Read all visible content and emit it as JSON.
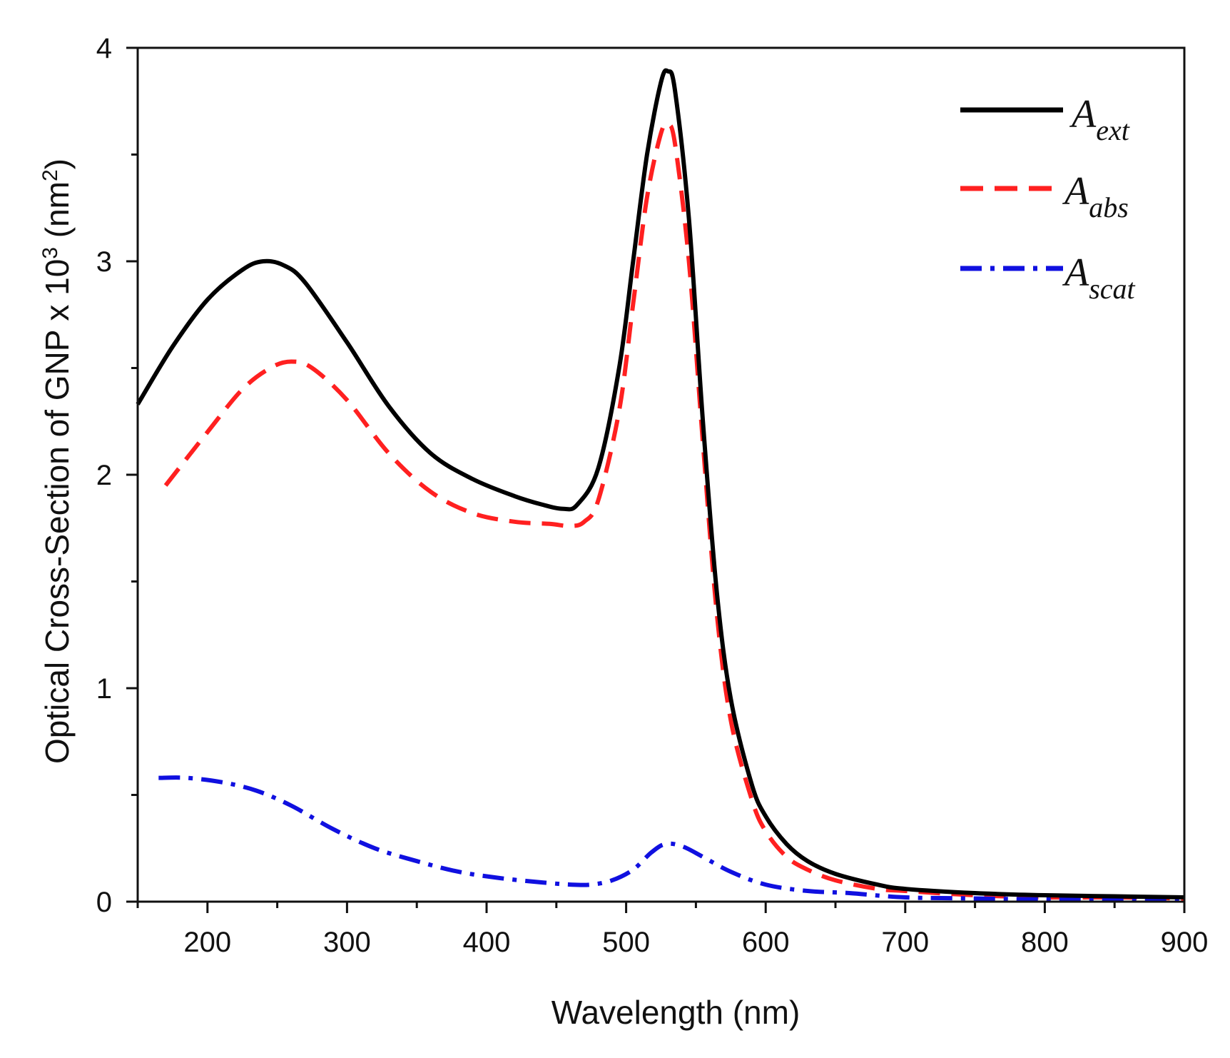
{
  "chart_data": {
    "type": "line",
    "title": "",
    "xlabel": "Wavelength (nm)",
    "ylabel_main": "Optical Cross-Section of GNP  x 10",
    "ylabel_exp": "3",
    "ylabel_unit_open": " (nm",
    "ylabel_unit_exp": "2",
    "ylabel_unit_close": ")",
    "xlim": [
      150,
      900
    ],
    "ylim": [
      0,
      4
    ],
    "x_ticks": [
      200,
      300,
      400,
      500,
      600,
      700,
      800,
      900
    ],
    "x_tick_labels": [
      "200",
      "300",
      "400",
      "500",
      "600",
      "700",
      "800",
      "900"
    ],
    "x_minor_ticks": [
      150,
      250,
      350,
      450,
      550,
      650,
      750,
      850
    ],
    "y_ticks": [
      0,
      1,
      2,
      3,
      4
    ],
    "y_tick_labels": [
      "0",
      "1",
      "2",
      "3",
      "4"
    ],
    "y_minor_ticks": [
      0.5,
      1.5,
      2.5,
      3.5
    ],
    "grid": false,
    "legend_position": "top-right",
    "series": [
      {
        "name": "A_ext",
        "label_main": "A",
        "label_sub": "ext",
        "color": "#000000",
        "dash": "solid",
        "x": [
          150,
          175,
          200,
          225,
          240,
          255,
          270,
          300,
          330,
          360,
          390,
          420,
          440,
          455,
          465,
          480,
          495,
          505,
          515,
          525,
          530,
          535,
          545,
          555,
          565,
          575,
          590,
          600,
          615,
          630,
          650,
          680,
          700,
          750,
          800,
          850,
          900
        ],
        "y": [
          2.33,
          2.6,
          2.82,
          2.96,
          3.0,
          2.98,
          2.9,
          2.62,
          2.32,
          2.1,
          1.98,
          1.9,
          1.86,
          1.84,
          1.86,
          2.03,
          2.5,
          3.0,
          3.5,
          3.84,
          3.89,
          3.8,
          3.2,
          2.25,
          1.45,
          0.95,
          0.55,
          0.4,
          0.27,
          0.19,
          0.13,
          0.08,
          0.06,
          0.04,
          0.03,
          0.025,
          0.02
        ]
      },
      {
        "name": "A_abs",
        "label_main": "A",
        "label_sub": "abs",
        "color": "#ff2020",
        "dash": "dashed",
        "x": [
          170,
          200,
          225,
          245,
          260,
          275,
          300,
          330,
          360,
          390,
          420,
          445,
          460,
          470,
          480,
          495,
          505,
          515,
          525,
          530,
          535,
          545,
          555,
          565,
          575,
          590,
          600,
          615,
          630,
          650,
          680,
          700,
          750,
          800,
          850,
          900
        ],
        "y": [
          1.95,
          2.2,
          2.4,
          2.5,
          2.53,
          2.5,
          2.35,
          2.1,
          1.92,
          1.82,
          1.78,
          1.77,
          1.76,
          1.78,
          1.88,
          2.3,
          2.8,
          3.3,
          3.6,
          3.64,
          3.55,
          3.0,
          2.15,
          1.35,
          0.85,
          0.48,
          0.33,
          0.21,
          0.15,
          0.1,
          0.06,
          0.05,
          0.03,
          0.02,
          0.02,
          0.015
        ]
      },
      {
        "name": "A_scat",
        "label_main": "A",
        "label_sub": "scat",
        "color": "#1010e0",
        "dash": "dashdot",
        "x": [
          165,
          185,
          210,
          235,
          260,
          290,
          320,
          350,
          380,
          410,
          440,
          460,
          475,
          490,
          505,
          518,
          528,
          540,
          555,
          575,
          600,
          630,
          660,
          700,
          750,
          800,
          850,
          900
        ],
        "y": [
          0.58,
          0.58,
          0.56,
          0.52,
          0.45,
          0.34,
          0.25,
          0.19,
          0.14,
          0.11,
          0.09,
          0.08,
          0.08,
          0.1,
          0.15,
          0.23,
          0.27,
          0.26,
          0.21,
          0.14,
          0.08,
          0.05,
          0.04,
          0.02,
          0.015,
          0.01,
          0.008,
          0.005
        ]
      }
    ]
  }
}
